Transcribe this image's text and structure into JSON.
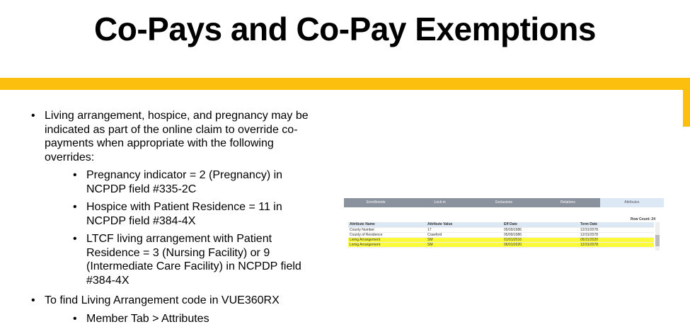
{
  "title": "Co-Pays and Co-Pay Exemptions",
  "bullets": {
    "b1": "Living arrangement, hospice, and pregnancy may be indicated as part of the online claim to override co-payments when appropriate with the following overrides:",
    "sub1": "Pregnancy indicator = 2 (Pregnancy) in NCPDP field #335-2C",
    "sub2": "Hospice with Patient Residence = 11 in NCPDP field #384-4X",
    "sub3": "LTCF living arrangement with Patient Residence = 3 (Nursing Facility) or 9 (Intermediate Care Facility) in NCPDP field #384-4X",
    "b2": "To find Living Arrangement code in VUE360RX",
    "sub4": "Member Tab > Attributes"
  },
  "screenshot": {
    "tabs": [
      "Enrollments",
      "Lock-in",
      "Exclusions",
      "Relations",
      "Attributes"
    ],
    "row_count": "Row Count: 24",
    "columns": [
      "Attribute Name",
      "Attribute Value",
      "Eff Date",
      "Term Date"
    ],
    "rows": [
      {
        "name": "County Number",
        "value": "17",
        "eff": "05/09/1986",
        "term": "12/31/2078"
      },
      {
        "name": "County of Residence",
        "value": "Crawford",
        "eff": "05/09/1986",
        "term": "12/31/2078"
      },
      {
        "name": "Living Arrangement",
        "value": "SM",
        "eff": "01/01/2016",
        "term": "05/31/2020"
      },
      {
        "name": "Living Arrangement",
        "value": "SM",
        "eff": "06/01/2020",
        "term": "12/31/2078"
      }
    ]
  }
}
